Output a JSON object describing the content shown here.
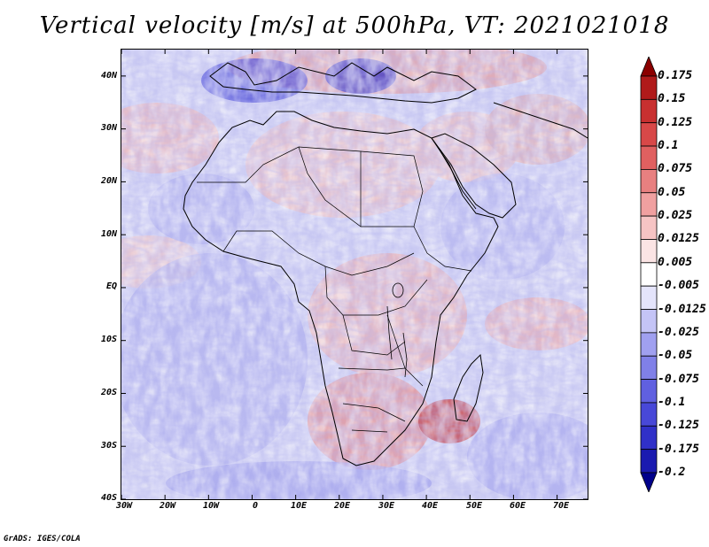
{
  "title": "Vertical velocity [m/s] at 500hPa, VT: 2021021018",
  "footer": "GrADS: IGES/COLA",
  "map": {
    "lat_labels": [
      "40N",
      "30N",
      "20N",
      "10N",
      "EQ",
      "10S",
      "20S",
      "30S",
      "40S"
    ],
    "lon_labels": [
      "30W",
      "20W",
      "10W",
      "0",
      "10E",
      "20E",
      "30E",
      "40E",
      "50E",
      "60E",
      "70E"
    ],
    "lat_range": [
      -40,
      45
    ],
    "lon_range": [
      -30,
      77
    ]
  },
  "colorbar": {
    "labels": [
      "0.175",
      "0.15",
      "0.125",
      "0.1",
      "0.075",
      "0.05",
      "0.025",
      "0.0125",
      "0.005",
      "-0.005",
      "-0.0125",
      "-0.025",
      "-0.05",
      "-0.075",
      "-0.1",
      "-0.125",
      "-0.175",
      "-0.2"
    ],
    "colors": [
      "#8b0000",
      "#b01a1a",
      "#c83030",
      "#d84848",
      "#e06060",
      "#e88080",
      "#f0a0a0",
      "#f6c4c4",
      "#fbe4e4",
      "#ffffff",
      "#e4e4fb",
      "#c4c4f6",
      "#a0a0f0",
      "#8080e8",
      "#6060e0",
      "#4848d8",
      "#3030c8",
      "#1a1ab0",
      "#00008b"
    ]
  }
}
